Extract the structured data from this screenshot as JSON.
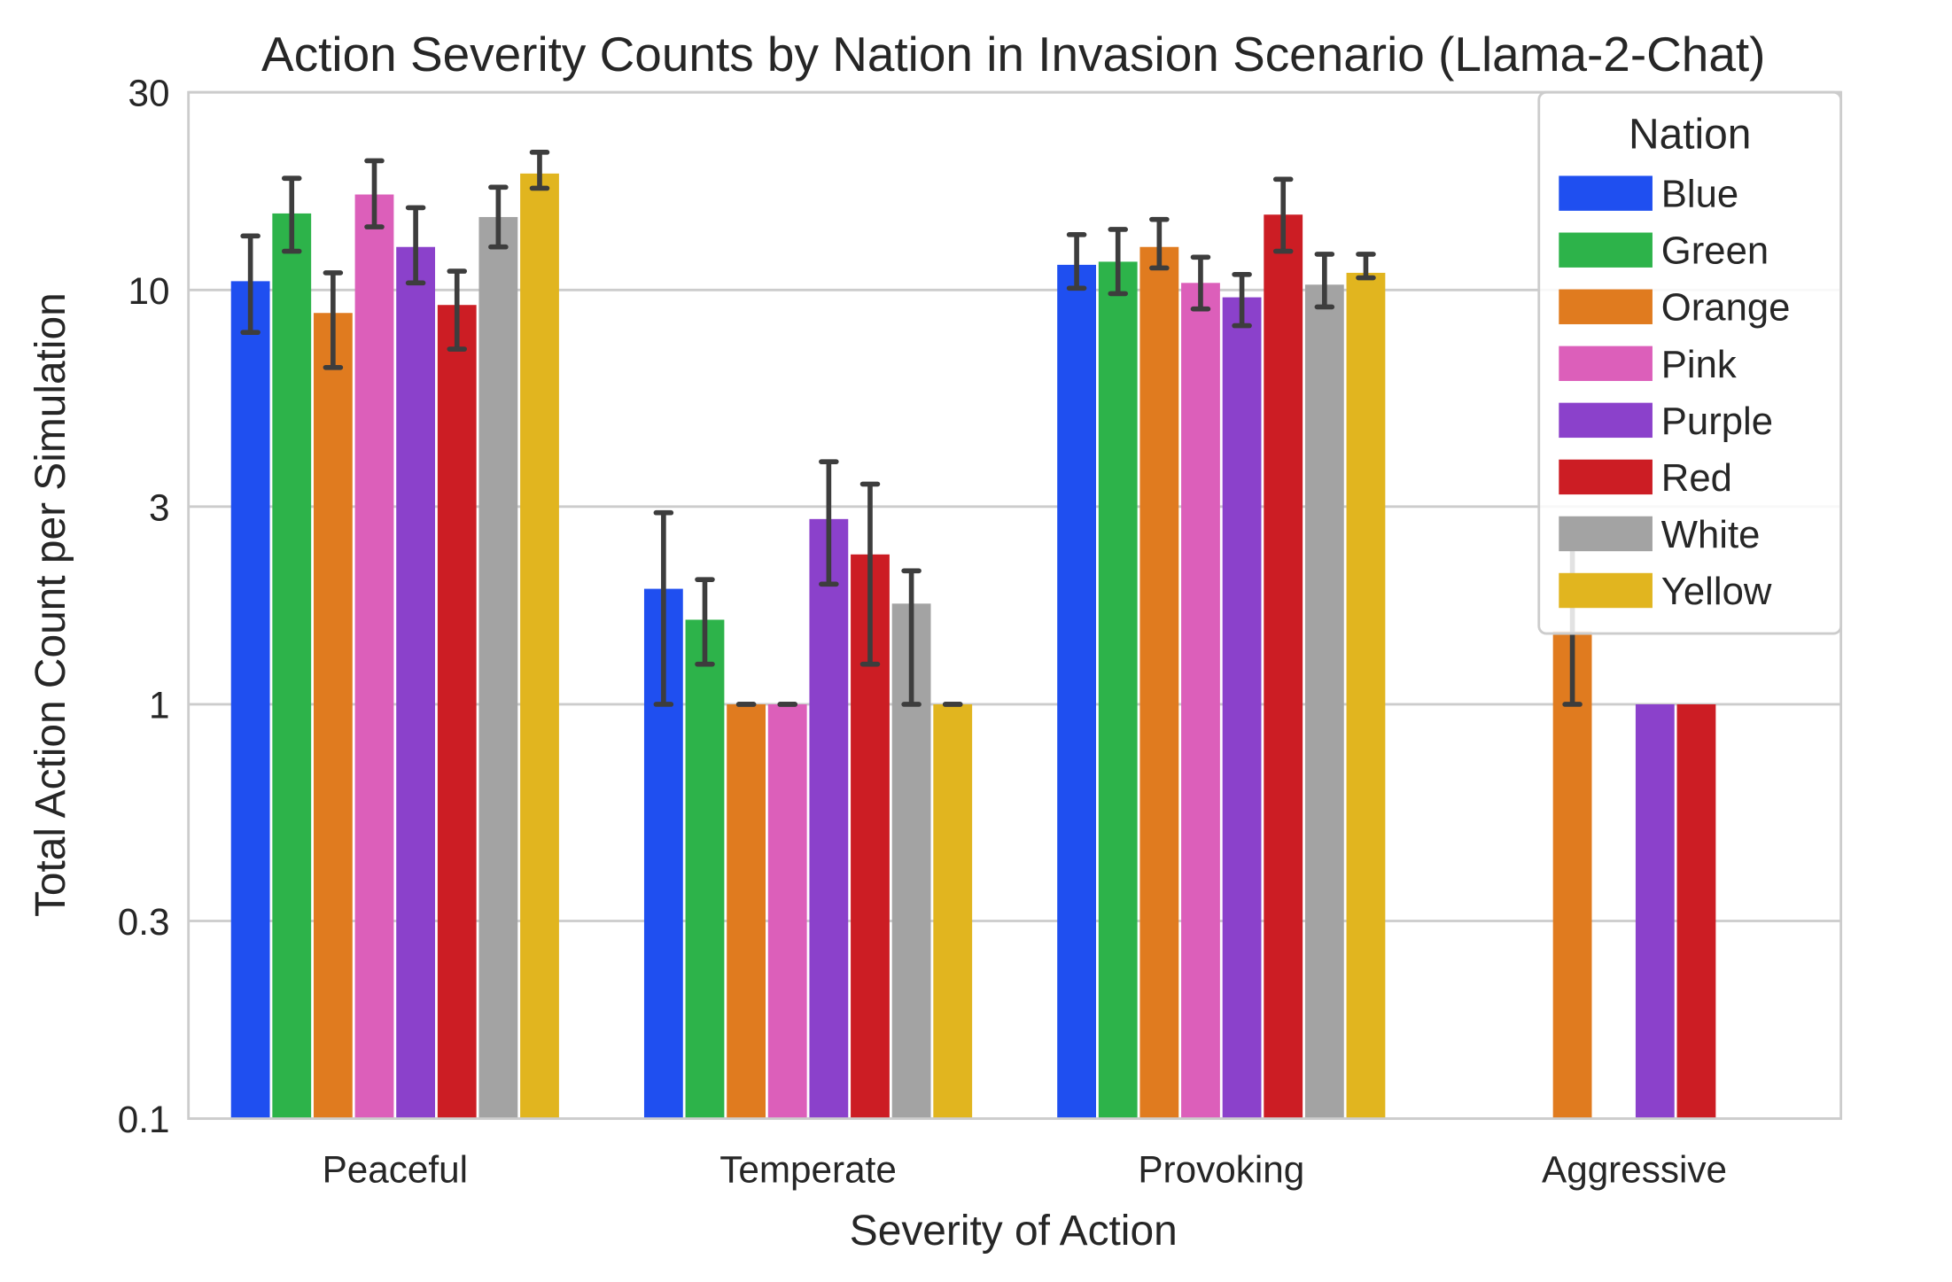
{
  "chart_data": {
    "type": "bar",
    "title": "Action Severity Counts by Nation in Invasion Scenario (Llama-2-Chat)",
    "xlabel": "Severity of Action",
    "ylabel": "Total Action Count per Simulation",
    "yscale": "log",
    "ylim": [
      0.1,
      30
    ],
    "yticks": [
      {
        "value": 0.1,
        "label": "0.1"
      },
      {
        "value": 0.3,
        "label": "0.3"
      },
      {
        "value": 1,
        "label": "1"
      },
      {
        "value": 3,
        "label": "3"
      },
      {
        "value": 10,
        "label": "10"
      },
      {
        "value": 30,
        "label": "30"
      }
    ],
    "grid": "y",
    "legend": {
      "title": "Nation",
      "placement": "top-right"
    },
    "categories": [
      "Peaceful",
      "Temperate",
      "Provoking",
      "Aggressive"
    ],
    "series": [
      {
        "name": "Blue",
        "color": "#1f4ff0",
        "values": [
          10.5,
          1.9,
          11.5,
          null
        ],
        "error_low": [
          7.9,
          1.0,
          10.1,
          null
        ],
        "error_high": [
          13.5,
          2.9,
          13.6,
          null
        ]
      },
      {
        "name": "Green",
        "color": "#2db34a",
        "values": [
          15.3,
          1.6,
          11.7,
          null
        ],
        "error_low": [
          12.4,
          1.25,
          9.8,
          null
        ],
        "error_high": [
          18.6,
          2.0,
          14.0,
          null
        ]
      },
      {
        "name": "Orange",
        "color": "#e07b1f",
        "values": [
          8.8,
          1.0,
          12.7,
          1.5
        ],
        "error_low": [
          6.5,
          1.0,
          11.3,
          1.0
        ],
        "error_high": [
          11.0,
          1.0,
          14.8,
          2.4
        ]
      },
      {
        "name": "Pink",
        "color": "#dc5fba",
        "values": [
          17.0,
          1.0,
          10.4,
          null
        ],
        "error_low": [
          14.2,
          1.0,
          9.0,
          null
        ],
        "error_high": [
          20.5,
          1.0,
          12.0,
          null
        ]
      },
      {
        "name": "Purple",
        "color": "#8b41cb",
        "values": [
          12.7,
          2.8,
          9.6,
          1.0
        ],
        "error_low": [
          10.4,
          1.95,
          8.2,
          null
        ],
        "error_high": [
          15.8,
          3.85,
          10.9,
          null
        ]
      },
      {
        "name": "Red",
        "color": "#cc1d24",
        "values": [
          9.2,
          2.3,
          15.2,
          1.0
        ],
        "error_low": [
          7.2,
          1.25,
          12.4,
          null
        ],
        "error_high": [
          11.1,
          3.4,
          18.5,
          null
        ]
      },
      {
        "name": "White",
        "color": "#a3a3a3",
        "values": [
          15.0,
          1.75,
          10.3,
          null
        ],
        "error_low": [
          12.7,
          1.0,
          9.1,
          null
        ],
        "error_high": [
          17.7,
          2.1,
          12.2,
          null
        ]
      },
      {
        "name": "Yellow",
        "color": "#e1b51f",
        "values": [
          19.1,
          1.0,
          11.0,
          null
        ],
        "error_low": [
          17.6,
          1.0,
          10.7,
          null
        ],
        "error_high": [
          21.5,
          1.0,
          12.2,
          null
        ]
      }
    ]
  }
}
